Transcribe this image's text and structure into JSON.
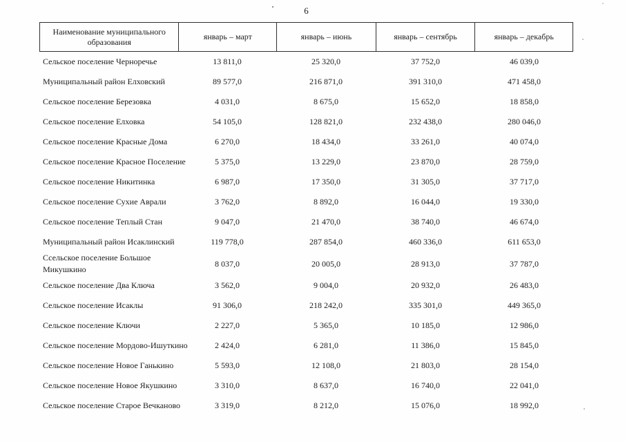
{
  "page": {
    "number": "6"
  },
  "table": {
    "columns": [
      {
        "label": "Наименование муниципального образования"
      },
      {
        "label": "январь – март"
      },
      {
        "label": "январь – июнь"
      },
      {
        "label": "январь – сентябрь"
      },
      {
        "label": "январь – декабрь"
      }
    ],
    "rows": [
      {
        "name": "Сельское поселение Черноречье",
        "values": [
          "13 811,0",
          "25 320,0",
          "37 752,0",
          "46 039,0"
        ]
      },
      {
        "name": "Муниципальный район Елховский",
        "values": [
          "89 577,0",
          "216 871,0",
          "391 310,0",
          "471 458,0"
        ]
      },
      {
        "name": "Сельское поселение Березовка",
        "values": [
          "4 031,0",
          "8 675,0",
          "15 652,0",
          "18 858,0"
        ]
      },
      {
        "name": "Сельское поселение Елховка",
        "values": [
          "54 105,0",
          "128 821,0",
          "232 438,0",
          "280 046,0"
        ]
      },
      {
        "name": "Сельское поселение Красные Дома",
        "values": [
          "6 270,0",
          "18 434,0",
          "33 261,0",
          "40 074,0"
        ]
      },
      {
        "name": "Сельское поселение Красное Поселение",
        "values": [
          "5 375,0",
          "13 229,0",
          "23 870,0",
          "28 759,0"
        ]
      },
      {
        "name": "Сельское поселение Никитинка",
        "values": [
          "6 987,0",
          "17 350,0",
          "31 305,0",
          "37 717,0"
        ]
      },
      {
        "name": "Сельское поселение Сухие Аврали",
        "values": [
          "3 762,0",
          "8 892,0",
          "16 044,0",
          "19 330,0"
        ]
      },
      {
        "name": "Сельское поселение Теплый Стан",
        "values": [
          "9 047,0",
          "21 470,0",
          "38 740,0",
          "46 674,0"
        ]
      },
      {
        "name": "Муниципальный район Исаклинский",
        "values": [
          "119 778,0",
          "287 854,0",
          "460 336,0",
          "611 653,0"
        ]
      },
      {
        "name": "Ссельское поселение Большое\nМикушкино",
        "values": [
          "8 037,0",
          "20 005,0",
          "28 913,0",
          "37 787,0"
        ]
      },
      {
        "name": "Сельское поселение Два Ключа",
        "values": [
          "3 562,0",
          "9 004,0",
          "20 932,0",
          "26 483,0"
        ]
      },
      {
        "name": "Сельское поселение Исаклы",
        "values": [
          "91 306,0",
          "218 242,0",
          "335 301,0",
          "449 365,0"
        ]
      },
      {
        "name": "Сельское поселение Ключи",
        "values": [
          "2 227,0",
          "5 365,0",
          "10 185,0",
          "12 986,0"
        ]
      },
      {
        "name": "Сельское поселение Мордово-Ишуткино",
        "values": [
          "2 424,0",
          "6 281,0",
          "11 386,0",
          "15 845,0"
        ]
      },
      {
        "name": "Сельское поселение Новое Ганькино",
        "values": [
          "5 593,0",
          "12 108,0",
          "21 803,0",
          "28 154,0"
        ]
      },
      {
        "name": "Сельское поселение Новое Якушкино",
        "values": [
          "3 310,0",
          "8 637,0",
          "16 740,0",
          "22 041,0"
        ]
      },
      {
        "name": "Сельское поселение Старое Вечканово",
        "values": [
          "3 319,0",
          "8 212,0",
          "15 076,0",
          "18 992,0"
        ]
      }
    ]
  }
}
